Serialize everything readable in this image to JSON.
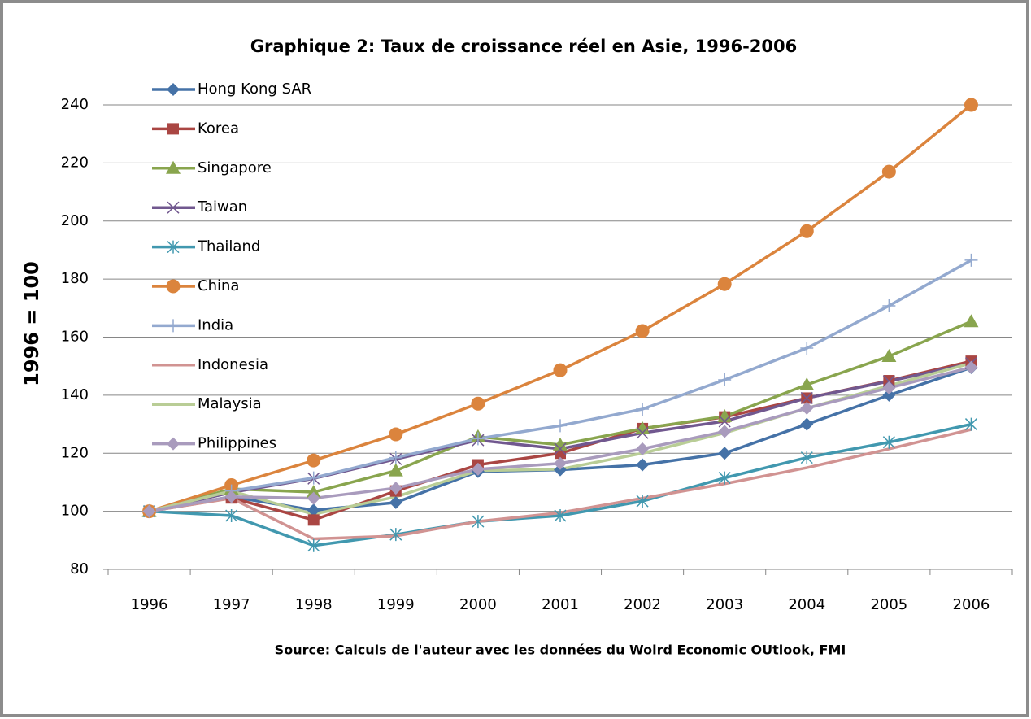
{
  "chart_data": {
    "type": "line",
    "title": "Graphique 2: Taux de croissance réel en Asie, 1996-2006",
    "y_label": "1996 = 100",
    "source": "Source: Calculs de l'auteur avec les données du Wolrd Economic OUtlook, FMI",
    "categories": [
      "1996",
      "1997",
      "1998",
      "1999",
      "2000",
      "2001",
      "2002",
      "2003",
      "2004",
      "2005",
      "2006"
    ],
    "ylim": [
      80,
      240
    ],
    "yticks": [
      80,
      100,
      120,
      140,
      160,
      180,
      200,
      220,
      240
    ],
    "grid": true,
    "series": [
      {
        "name": "Hong Kong SAR",
        "color": "#4572a7",
        "marker": "diamond",
        "values": [
          100,
          105,
          100.4,
          103,
          113.7,
          114.3,
          116,
          120,
          130,
          140,
          149.5
        ]
      },
      {
        "name": "Korea",
        "color": "#aa4643",
        "marker": "square",
        "values": [
          100,
          104.6,
          97,
          107,
          116,
          120,
          128.5,
          132.5,
          139,
          145,
          151.7
        ]
      },
      {
        "name": "Singapore",
        "color": "#89a54e",
        "marker": "triangle",
        "values": [
          100,
          107.7,
          106.6,
          114,
          125.7,
          122.9,
          128.5,
          132.7,
          143.6,
          153.4,
          165.4
        ]
      },
      {
        "name": "Taiwan",
        "color": "#71588f",
        "marker": "x",
        "values": [
          100,
          106.5,
          111.3,
          118,
          124.5,
          121.5,
          127,
          131,
          139,
          144.8,
          151
        ]
      },
      {
        "name": "Thailand",
        "color": "#4198af",
        "marker": "star",
        "values": [
          100,
          98.5,
          88.2,
          92,
          96.5,
          98.5,
          103.5,
          111.5,
          118.5,
          123.8,
          130
        ]
      },
      {
        "name": "China",
        "color": "#db843d",
        "marker": "circle",
        "values": [
          100,
          109,
          117.5,
          126.5,
          137.1,
          148.6,
          162.1,
          178.3,
          196.5,
          217,
          240
        ]
      },
      {
        "name": "India",
        "color": "#93a9cf",
        "marker": "plus",
        "values": [
          100,
          107,
          111.5,
          118.5,
          125,
          129.5,
          135.2,
          145.3,
          156.2,
          170.8,
          186.5
        ]
      },
      {
        "name": "Indonesia",
        "color": "#d19392",
        "marker": "none",
        "values": [
          100,
          104.5,
          90.5,
          91.5,
          96.5,
          99.5,
          104.5,
          109.5,
          115,
          121.5,
          128.2
        ]
      },
      {
        "name": "Malaysia",
        "color": "#b9cd96",
        "marker": "none",
        "values": [
          100,
          107,
          99,
          105,
          114,
          114.5,
          120,
          127,
          135.5,
          143.3,
          151
        ]
      },
      {
        "name": "Philippines",
        "color": "#a99bbd",
        "marker": "diamond",
        "values": [
          100,
          105,
          104.5,
          108,
          114.5,
          116.5,
          121.5,
          127.5,
          135.5,
          142.5,
          149.6
        ]
      }
    ]
  }
}
